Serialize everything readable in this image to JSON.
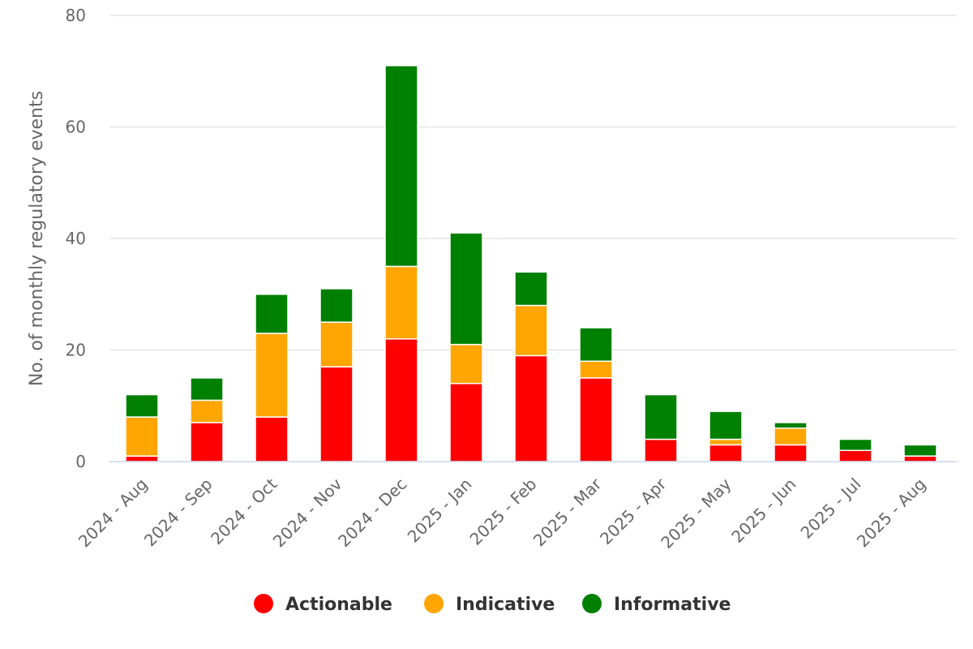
{
  "chart_data": {
    "type": "bar",
    "stacked": true,
    "categories": [
      "2024 - Aug",
      "2024 - Sep",
      "2024 - Oct",
      "2024 - Nov",
      "2024 - Dec",
      "2025 - Jan",
      "2025 - Feb",
      "2025 - Mar",
      "2025 - Apr",
      "2025 - May",
      "2025 - Jun",
      "2025 - Jul",
      "2025 - Aug"
    ],
    "series": [
      {
        "name": "Actionable",
        "color": "#ff0000",
        "values": [
          1,
          7,
          8,
          17,
          22,
          14,
          19,
          15,
          4,
          3,
          3,
          2,
          1
        ]
      },
      {
        "name": "Indicative",
        "color": "#ffa500",
        "values": [
          7,
          4,
          15,
          8,
          13,
          7,
          9,
          3,
          0,
          1,
          3,
          0,
          0
        ]
      },
      {
        "name": "Informative",
        "color": "#008000",
        "values": [
          4,
          4,
          7,
          6,
          36,
          20,
          6,
          6,
          8,
          5,
          1,
          2,
          2
        ]
      }
    ],
    "title": "",
    "xlabel": "",
    "ylabel": "No. of monthly regulatory events",
    "ylim": [
      0,
      80
    ],
    "yticks": [
      0,
      20,
      40,
      60,
      80
    ],
    "grid": true,
    "legend_position": "bottom-center"
  }
}
